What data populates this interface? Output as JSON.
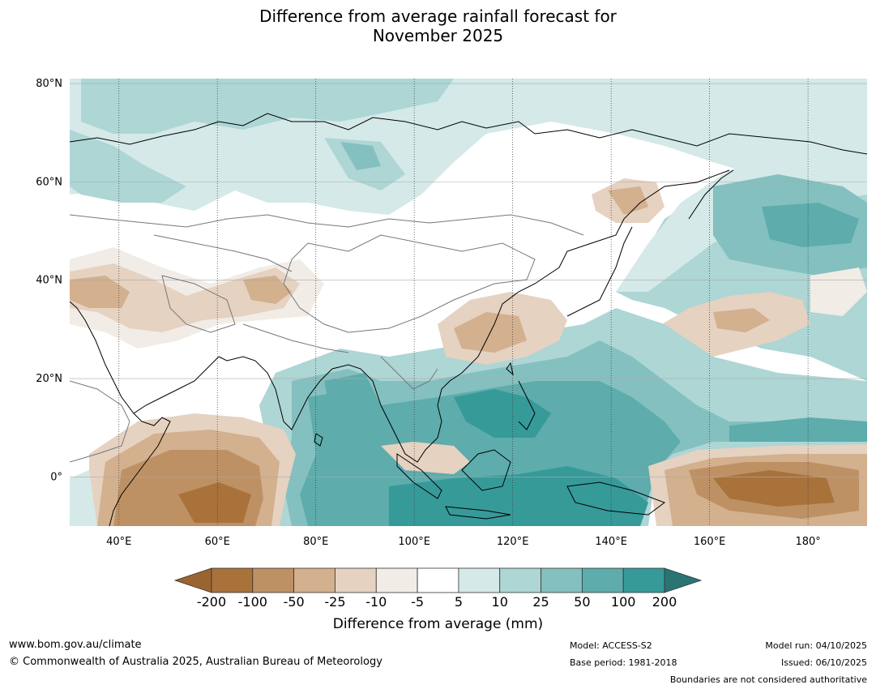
{
  "title": {
    "line1": "Difference from average rainfall forecast for",
    "line2": "November 2025"
  },
  "map": {
    "lat_labels": [
      "80°N",
      "60°N",
      "40°N",
      "20°N",
      "0°"
    ],
    "lon_labels": [
      "40°E",
      "60°E",
      "80°E",
      "100°E",
      "120°E",
      "140°E",
      "160°E",
      "180°"
    ],
    "lat_range": [
      -10,
      81
    ],
    "lon_range": [
      30,
      192
    ]
  },
  "colorbar": {
    "label": "Difference from average (mm)",
    "ticks": [
      "-200",
      "-100",
      "-50",
      "-25",
      "-10",
      "-5",
      "5",
      "10",
      "25",
      "50",
      "100",
      "200"
    ],
    "colors": {
      "below_min": "#9a6430",
      "c1": "#a9723b",
      "c2": "#be9164",
      "c3": "#d3b08e",
      "c4": "#e5d2c1",
      "c5": "#f1ece6",
      "c6": "#ffffff",
      "c7": "#d4e9e8",
      "c8": "#add6d5",
      "c9": "#84c0bf",
      "c10": "#5eacac",
      "c11": "#369a99",
      "above_max": "#2a7574"
    }
  },
  "footer": {
    "website": "www.bom.gov.au/climate",
    "copyright": "© Commonwealth of Australia 2025, Australian Bureau of Meteorology",
    "model": "Model: ACCESS-S2",
    "base_period": "Base period: 1981-2018",
    "model_run": "Model run: 04/10/2025",
    "issued": "Issued: 06/10/2025",
    "disclaimer": "Boundaries are not considered authoritative"
  }
}
